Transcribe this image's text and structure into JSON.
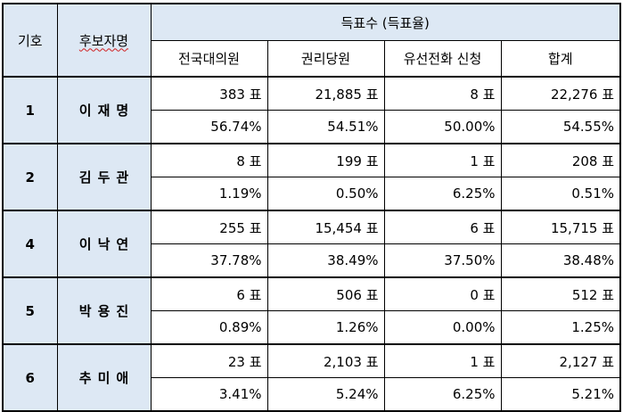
{
  "header": {
    "symbol": "기호",
    "candidate": "후보자명",
    "group": "득표수 (득표율)",
    "columns": [
      "전국대의원",
      "권리당원",
      "유선전화 신청",
      "합계"
    ]
  },
  "candidates": [
    {
      "symbol": "1",
      "name": "이재명",
      "votes": [
        "383 표",
        "21,885 표",
        "8 표",
        "22,276 표"
      ],
      "rates": [
        "56.74%",
        "54.51%",
        "50.00%",
        "54.55%"
      ]
    },
    {
      "symbol": "2",
      "name": "김두관",
      "votes": [
        "8 표",
        "199 표",
        "1 표",
        "208 표"
      ],
      "rates": [
        "1.19%",
        "0.50%",
        "6.25%",
        "0.51%"
      ]
    },
    {
      "symbol": "4",
      "name": "이낙연",
      "votes": [
        "255 표",
        "15,454 표",
        "6 표",
        "15,715 표"
      ],
      "rates": [
        "37.78%",
        "38.49%",
        "37.50%",
        "38.48%"
      ]
    },
    {
      "symbol": "5",
      "name": "박용진",
      "votes": [
        "6 표",
        "506 표",
        "0 표",
        "512 표"
      ],
      "rates": [
        "0.89%",
        "1.26%",
        "0.00%",
        "1.25%"
      ]
    },
    {
      "symbol": "6",
      "name": "추미애",
      "votes": [
        "23 표",
        "2,103 표",
        "1 표",
        "2,127 표"
      ],
      "rates": [
        "3.41%",
        "5.24%",
        "6.25%",
        "5.21%"
      ]
    }
  ]
}
